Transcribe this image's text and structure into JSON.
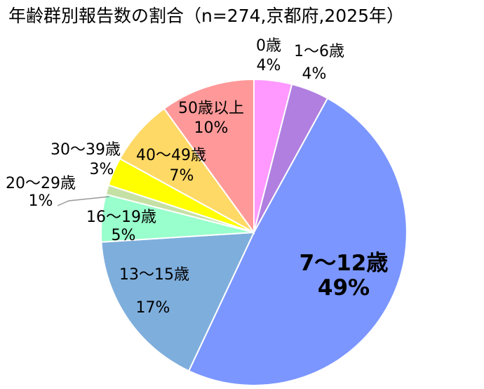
{
  "chart_data": {
    "type": "pie",
    "title": "年齢群別報告数の割合（n=274,京都府,2025年）",
    "slices": [
      {
        "category": "0歳",
        "value": 4,
        "label": "4%",
        "color": "#FF99FF"
      },
      {
        "category": "1～6歳",
        "value": 4,
        "label": "4%",
        "color": "#B07FE0"
      },
      {
        "category": "7～12歳",
        "value": 49,
        "label": "49%",
        "color": "#7B96FF"
      },
      {
        "category": "13～15歳",
        "value": 17,
        "label": "17%",
        "color": "#7EAEDC"
      },
      {
        "category": "16～19歳",
        "value": 5,
        "label": "5%",
        "color": "#99FFCC"
      },
      {
        "category": "20～29歳",
        "value": 1,
        "label": "1%",
        "color": "#C5E0A5"
      },
      {
        "category": "30～39歳",
        "value": 3,
        "label": "3%",
        "color": "#FFFF00"
      },
      {
        "category": "40～49歳",
        "value": 7,
        "label": "7%",
        "color": "#FFD966"
      },
      {
        "category": "50歳以上",
        "value": 10,
        "label": "10%",
        "color": "#FF9999"
      }
    ]
  }
}
